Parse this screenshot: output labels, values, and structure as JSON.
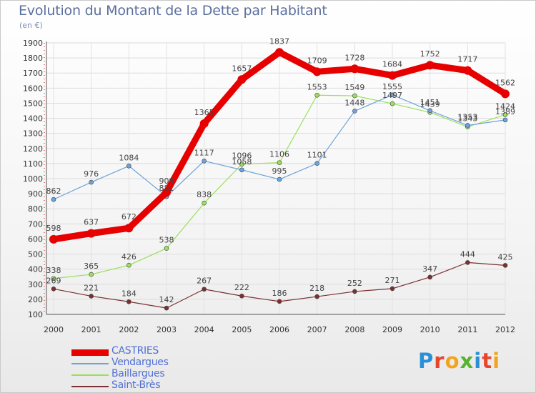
{
  "title": "Evolution du Montant de la Dette par Habitant",
  "subtitle": "(en €)",
  "brand": {
    "letters": [
      {
        "ch": "P",
        "color": "#2b8fd6"
      },
      {
        "ch": "r",
        "color": "#e8462b"
      },
      {
        "ch": "o",
        "color": "#f2a51c"
      },
      {
        "ch": "x",
        "color": "#56b432"
      },
      {
        "ch": "i",
        "color": "#2b8fd6"
      },
      {
        "ch": "t",
        "color": "#e8462b"
      },
      {
        "ch": "i",
        "color": "#f2a51c"
      }
    ]
  },
  "chart_data": {
    "type": "line",
    "categories": [
      "2000",
      "2001",
      "2002",
      "2003",
      "2004",
      "2005",
      "2006",
      "2007",
      "2008",
      "2009",
      "2010",
      "2011",
      "2012"
    ],
    "yticks": [
      100,
      200,
      300,
      400,
      500,
      600,
      700,
      800,
      900,
      1000,
      1100,
      1200,
      1300,
      1400,
      1500,
      1600,
      1700,
      1800,
      1900
    ],
    "ylim": [
      100,
      1900
    ],
    "grid": true,
    "legend_position": "bottom-left",
    "series": [
      {
        "name": "CASTRIES",
        "color": "#e60000",
        "line_width": 9,
        "marker_radius": 6,
        "values": [
          598,
          637,
          672,
          909,
          1365,
          1657,
          1837,
          1709,
          1728,
          1684,
          1752,
          1717,
          1562
        ]
      },
      {
        "name": "Vendargues",
        "color": "#6fa3d8",
        "line_width": 1.2,
        "marker_radius": 3,
        "values": [
          862,
          976,
          1084,
          881,
          1117,
          1058,
          995,
          1101,
          1448,
          1555,
          1451,
          1353,
          1389
        ]
      },
      {
        "name": "Baillargues",
        "color": "#99e05b",
        "line_width": 1.2,
        "marker_radius": 3,
        "values": [
          338,
          365,
          426,
          538,
          838,
          1096,
          1106,
          1553,
          1549,
          1497,
          1439,
          1343,
          1424
        ]
      },
      {
        "name": "Saint-Brès",
        "color": "#7a3030",
        "line_width": 1.2,
        "marker_radius": 3,
        "values": [
          269,
          221,
          184,
          142,
          267,
          222,
          186,
          218,
          252,
          271,
          347,
          444,
          425
        ]
      }
    ]
  }
}
